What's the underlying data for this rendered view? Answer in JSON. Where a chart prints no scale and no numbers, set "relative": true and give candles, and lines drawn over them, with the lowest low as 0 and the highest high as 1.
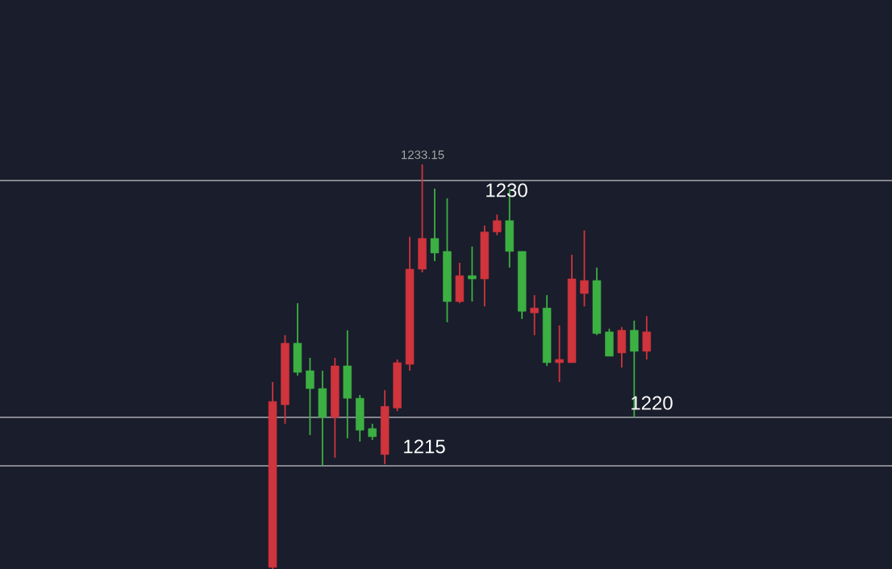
{
  "chart_data": {
    "type": "candlestick",
    "relative": true,
    "categories": [
      null,
      null,
      null,
      null,
      null,
      null,
      null,
      null,
      null,
      null,
      null,
      null,
      null,
      null,
      null,
      null,
      null,
      null,
      null,
      null,
      null,
      null,
      null,
      null,
      null,
      null,
      null,
      null,
      null,
      null,
      null
    ],
    "ohlc": [
      [
        0.004,
        0.462,
        0,
        0.414
      ],
      [
        0.406,
        0.578,
        0.359,
        0.558
      ],
      [
        0.558,
        0.657,
        0.478,
        0.486
      ],
      [
        0.49,
        0.522,
        0.331,
        0.446
      ],
      [
        0.446,
        0.49,
        0.255,
        0.375
      ],
      [
        0.375,
        0.522,
        0.275,
        0.502
      ],
      [
        0.502,
        0.59,
        0.323,
        0.422
      ],
      [
        0.422,
        0.43,
        0.315,
        0.343
      ],
      [
        0.347,
        0.359,
        0.319,
        0.327
      ],
      [
        0.283,
        0.442,
        0.259,
        0.402
      ],
      [
        0.398,
        0.518,
        0.39,
        0.51
      ],
      [
        0.506,
        0.821,
        0.49,
        0.741
      ],
      [
        0.741,
        1,
        0.733,
        0.817
      ],
      [
        0.817,
        0.94,
        0.761,
        0.781
      ],
      [
        0.785,
        0.916,
        0.61,
        0.661
      ],
      [
        0.661,
        0.757,
        0.657,
        0.725
      ],
      [
        0.725,
        0.797,
        0.661,
        0.717
      ],
      [
        0.717,
        0.849,
        0.649,
        0.833
      ],
      [
        0.833,
        0.876,
        0.825,
        0.861
      ],
      [
        0.861,
        0.94,
        0.745,
        0.785
      ],
      [
        0.785,
        0.785,
        0.618,
        0.637
      ],
      [
        0.633,
        0.677,
        0.578,
        0.645
      ],
      [
        0.645,
        0.677,
        0.502,
        0.51
      ],
      [
        0.51,
        0.602,
        0.462,
        0.518
      ],
      [
        0.51,
        0.777,
        0.51,
        0.717
      ],
      [
        0.681,
        0.837,
        0.649,
        0.713
      ],
      [
        0.713,
        0.745,
        0.578,
        0.582
      ],
      [
        0.586,
        0.594,
        0.526,
        0.526
      ],
      [
        0.534,
        0.598,
        0.498,
        0.59
      ],
      [
        0.59,
        0.614,
        0.375,
        0.538
      ],
      [
        0.538,
        0.625,
        0.518,
        0.586
      ]
    ],
    "colors": [
      "#d0343c",
      "#d0343c",
      "#3cb043",
      "#3cb043",
      "#3cb043",
      "#d0343c",
      "#3cb043",
      "#3cb043",
      "#3cb043",
      "#d0343c",
      "#d0343c",
      "#d0343c",
      "#d0343c",
      "#3cb043",
      "#3cb043",
      "#d0343c",
      "#3cb043",
      "#d0343c",
      "#d0343c",
      "#3cb043",
      "#3cb043",
      "#d0343c",
      "#3cb043",
      "#d0343c",
      "#d0343c",
      "#d0343c",
      "#3cb043",
      "#3cb043",
      "#d0343c",
      "#3cb043",
      "#d0343c"
    ],
    "ref_lines": [
      {
        "axis": "y",
        "value": 0.96,
        "color": "#a8a8b0"
      },
      {
        "axis": "y",
        "value": 0.375,
        "color": "#a8a8b0"
      },
      {
        "axis": "y",
        "value": 0.255,
        "color": "#a8a8b0"
      }
    ],
    "annotations": [
      "1233.15",
      "1230",
      "1215",
      "1220"
    ]
  }
}
